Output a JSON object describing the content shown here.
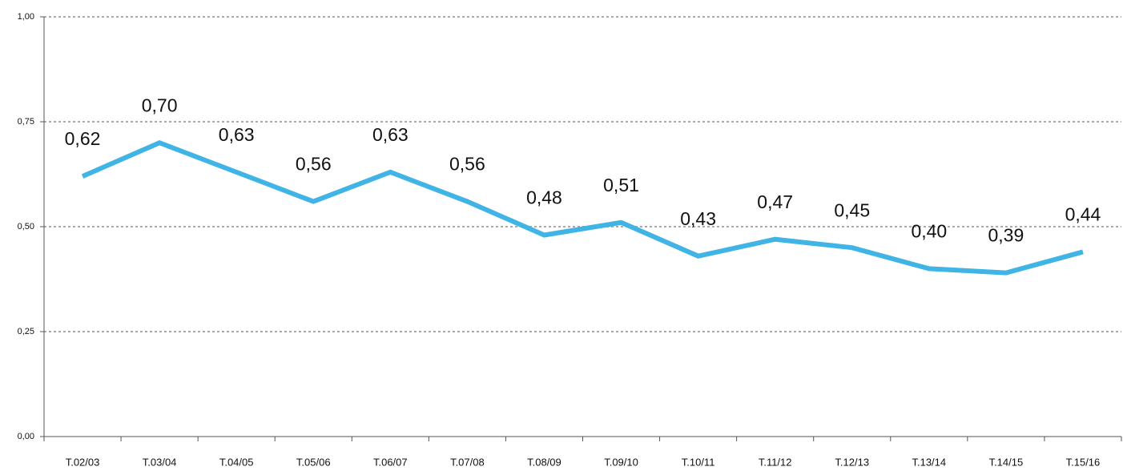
{
  "chart_data": {
    "type": "line",
    "categories": [
      "T.02/03",
      "T.03/04",
      "T.04/05",
      "T.05/06",
      "T.06/07",
      "T.07/08",
      "T.08/09",
      "T.09/10",
      "T.10/11",
      "T.11/12",
      "T.12/13",
      "T.13/14",
      "T.14/15",
      "T.15/16"
    ],
    "series": [
      {
        "color": "#41b4e6",
        "values": [
          0.62,
          0.7,
          0.63,
          0.56,
          0.63,
          0.56,
          0.48,
          0.51,
          0.43,
          0.47,
          0.45,
          0.4,
          0.39,
          0.44
        ],
        "value_labels": [
          "0,62",
          "0,70",
          "0,63",
          "0,56",
          "0,63",
          "0,56",
          "0,48",
          "0,51",
          "0,43",
          "0,47",
          "0,45",
          "0,40",
          "0,39",
          "0,44"
        ]
      }
    ],
    "ylim": [
      0,
      1
    ],
    "yticks": [
      {
        "value": 0,
        "label": "0,00"
      },
      {
        "value": 0.25,
        "label": "0,25"
      },
      {
        "value": 0.5,
        "label": "0,50"
      },
      {
        "value": 0.75,
        "label": "0,75"
      },
      {
        "value": 1,
        "label": "1,00"
      }
    ],
    "grid": true
  }
}
